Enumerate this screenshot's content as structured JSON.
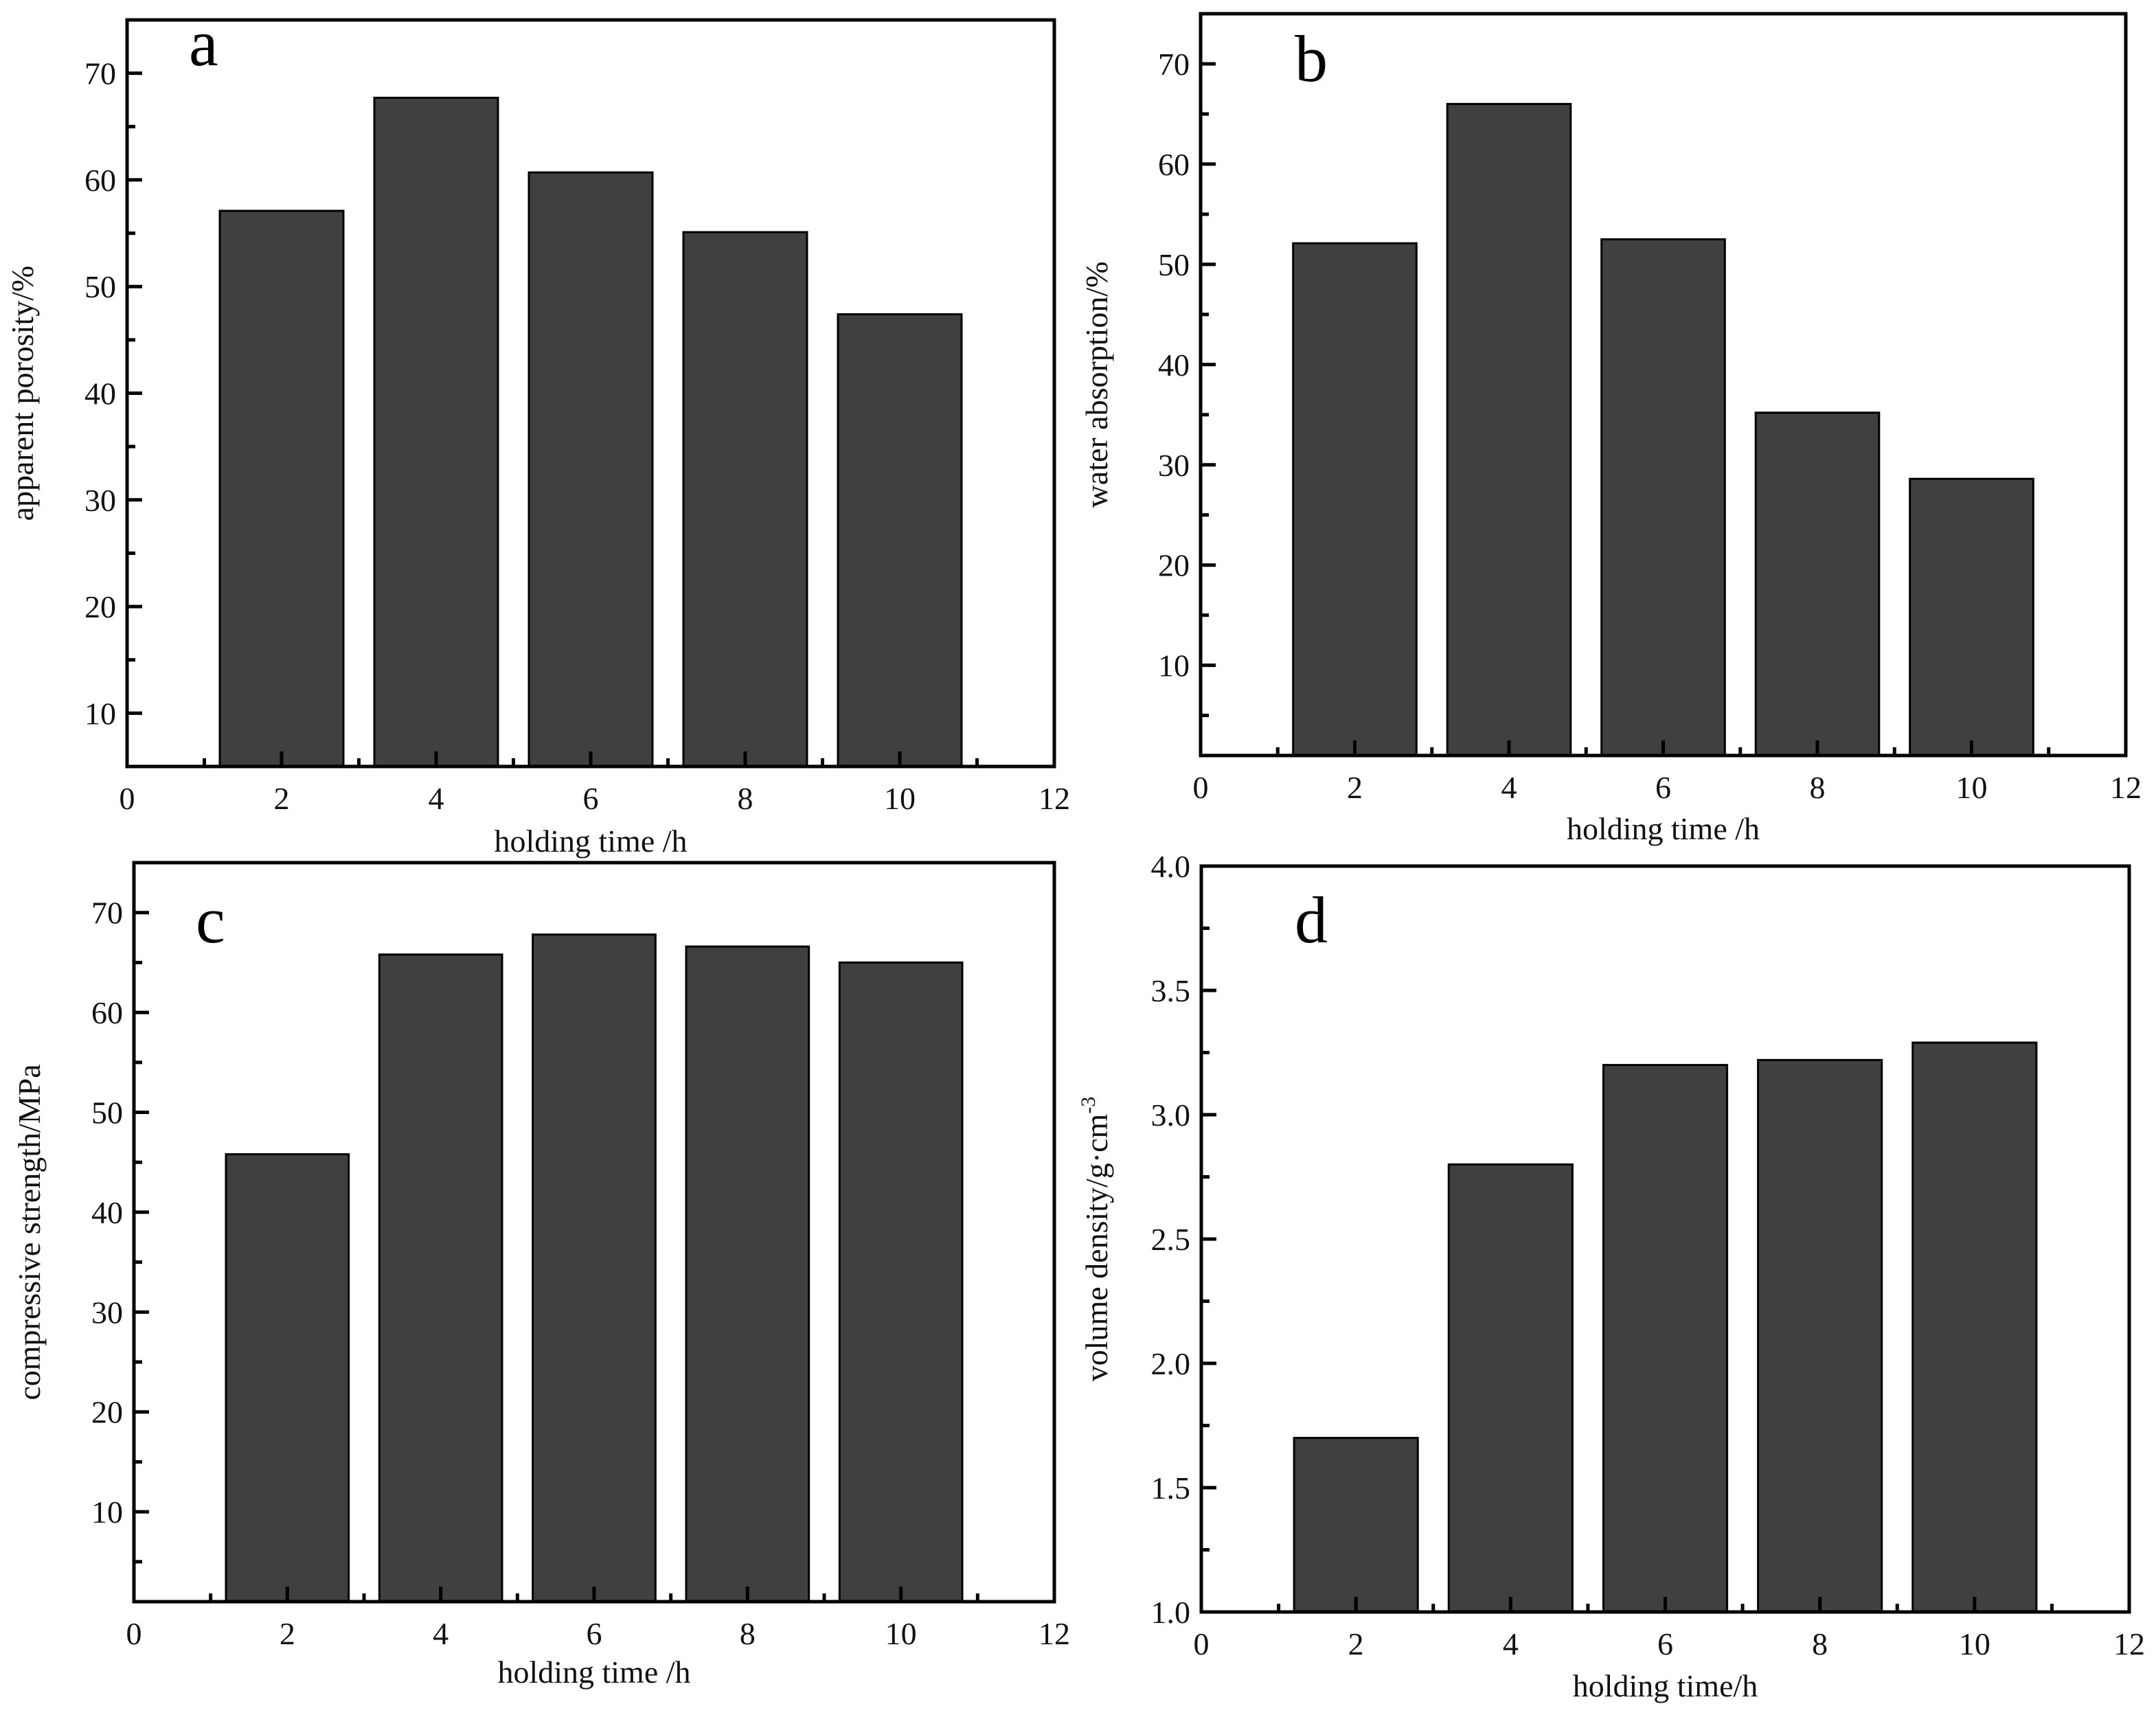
{
  "chart_data": [
    {
      "panel": "a",
      "type": "bar",
      "title": "",
      "xlabel": "holding time /h",
      "ylabel": "apparent porosity/%",
      "x": [
        2,
        4,
        6,
        8,
        10
      ],
      "values": [
        57.1,
        67.7,
        60.7,
        55.1,
        47.4
      ],
      "bar_width": 1.6,
      "xlim": [
        0,
        12
      ],
      "ylim": [
        5,
        75
      ],
      "xticks": [
        0,
        2,
        4,
        6,
        8,
        10,
        12
      ],
      "xtick_labels": [
        "0",
        "2",
        "4",
        "6",
        "8",
        "10",
        "12"
      ],
      "yticks": [
        10,
        20,
        30,
        40,
        50,
        60,
        70
      ],
      "ytick_labels": [
        "10",
        "20",
        "30",
        "40",
        "50",
        "60",
        "70"
      ],
      "y_minor_step": 5,
      "grid": false,
      "legend": "none"
    },
    {
      "panel": "b",
      "type": "bar",
      "title": "",
      "xlabel": "holding time /h",
      "ylabel": "water absorption/%",
      "x": [
        2,
        4,
        6,
        8,
        10
      ],
      "values": [
        52.1,
        66.0,
        52.5,
        35.2,
        28.6
      ],
      "bar_width": 1.6,
      "xlim": [
        0,
        12
      ],
      "ylim": [
        1,
        75
      ],
      "xticks": [
        0,
        2,
        4,
        6,
        8,
        10,
        12
      ],
      "xtick_labels": [
        "0",
        "2",
        "4",
        "6",
        "8",
        "10",
        "12"
      ],
      "yticks": [
        10,
        20,
        30,
        40,
        50,
        60,
        70
      ],
      "ytick_labels": [
        "10",
        "20",
        "30",
        "40",
        "50",
        "60",
        "70"
      ],
      "y_minor_step": 5,
      "grid": false,
      "legend": "none"
    },
    {
      "panel": "c",
      "type": "bar",
      "title": "",
      "xlabel": "holding time /h",
      "ylabel": "compressive strength/MPa",
      "x": [
        2,
        4,
        6,
        8,
        10
      ],
      "values": [
        45.8,
        65.8,
        67.8,
        66.6,
        65.0
      ],
      "bar_width": 1.6,
      "xlim": [
        0,
        12
      ],
      "ylim": [
        1,
        75
      ],
      "xticks": [
        0,
        2,
        4,
        6,
        8,
        10,
        12
      ],
      "xtick_labels": [
        "0",
        "2",
        "4",
        "6",
        "8",
        "10",
        "12"
      ],
      "yticks": [
        10,
        20,
        30,
        40,
        50,
        60,
        70
      ],
      "ytick_labels": [
        "10",
        "20",
        "30",
        "40",
        "50",
        "60",
        "70"
      ],
      "y_minor_step": 5,
      "grid": false,
      "legend": "none"
    },
    {
      "panel": "d",
      "type": "bar",
      "title": "",
      "xlabel": "holding time/h",
      "ylabel": "volume density/g·cm",
      "ylabel_superscript": "-3",
      "x": [
        2,
        4,
        6,
        8,
        10
      ],
      "values": [
        1.7,
        2.8,
        3.2,
        3.22,
        3.29
      ],
      "bar_width": 1.6,
      "xlim": [
        0,
        12
      ],
      "ylim": [
        1.0,
        4.0
      ],
      "xticks": [
        0,
        2,
        4,
        6,
        8,
        10,
        12
      ],
      "xtick_labels": [
        "0",
        "2",
        "4",
        "6",
        "8",
        "10",
        "12"
      ],
      "yticks": [
        1.0,
        1.5,
        2.0,
        2.5,
        3.0,
        3.5,
        4.0
      ],
      "ytick_labels": [
        "1.0",
        "1.5",
        "2.0",
        "2.5",
        "3.0",
        "3.5",
        "4.0"
      ],
      "y_minor_step": 0.25,
      "grid": false,
      "legend": "none"
    }
  ],
  "panel_letters": [
    "a",
    "b",
    "c",
    "d"
  ],
  "colors": {
    "bar_fill": "#404040",
    "bar_edge": "#000000",
    "axis": "#000000",
    "background": "#ffffff"
  }
}
